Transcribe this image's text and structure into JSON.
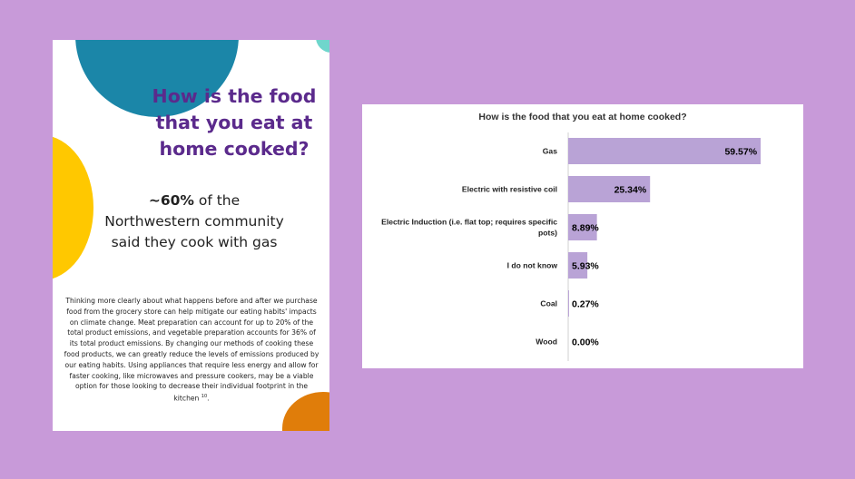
{
  "infographic": {
    "title_lines": [
      "How is the food",
      "that you eat at",
      "home cooked?"
    ],
    "stat_bold": "~60%",
    "stat_rest_1": " of the",
    "stat_line_2": "Northwestern community",
    "stat_line_3": "said they cook with gas",
    "body": "Thinking more clearly about what happens before and after we purchase food from the grocery store can help mitigate our eating habits' impacts on climate change. Meat preparation can account for up to 20% of the total product emissions, and vegetable preparation accounts for 36% of its total product emissions. By changing our methods of cooking these food products, we can greatly reduce the levels of emissions produced by our eating habits. Using appliances that require less energy and allow for faster cooking, like microwaves and pressure cookers, may be a viable option for those looking to decrease their individual footprint in the kitchen",
    "footnote": "10",
    "colors": {
      "title": "#5b2a8c",
      "teal": "#1b86a8",
      "mint": "#6fd6cc",
      "yellow": "#ffc800",
      "orange": "#e07d0a"
    }
  },
  "chart_data": {
    "type": "bar",
    "orientation": "horizontal",
    "title": "How is the food that you eat at home cooked?",
    "categories": [
      [
        "Gas"
      ],
      [
        "Electric with resistive coil"
      ],
      [
        "Electric Induction (i.e. flat top; requires specific",
        "pots)"
      ],
      [
        "I do not know"
      ],
      [
        "Coal"
      ],
      [
        "Wood"
      ]
    ],
    "values": [
      59.57,
      25.34,
      8.89,
      5.93,
      0.27,
      0.0
    ],
    "value_labels": [
      "59.57%",
      "25.34%",
      "8.89%",
      "5.93%",
      "0.27%",
      "0.00%"
    ],
    "xlim": [
      0,
      100
    ],
    "grid": false,
    "bar_color": "#b9a3d6"
  }
}
